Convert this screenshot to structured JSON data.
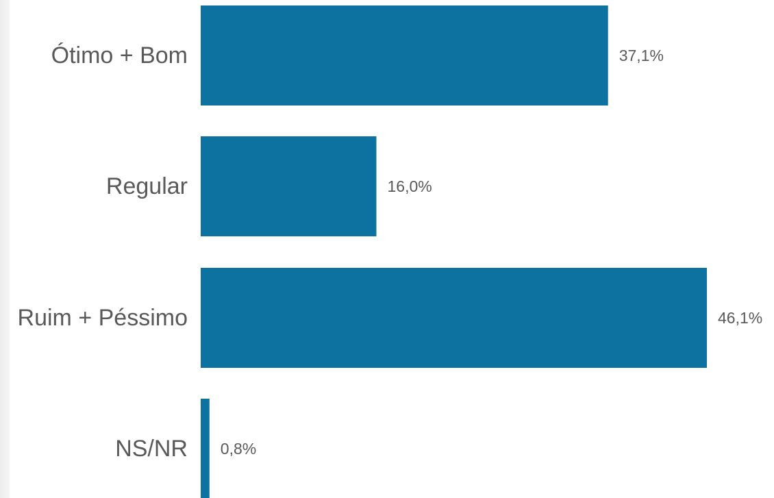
{
  "chart_data": {
    "type": "bar",
    "orientation": "horizontal",
    "categories": [
      "Ótimo + Bom",
      "Regular",
      "Ruim + Péssimo",
      "NS/NR"
    ],
    "values": [
      37.1,
      16.0,
      46.1,
      0.8
    ],
    "value_labels": [
      "37,1%",
      "16,0%",
      "46,1%",
      "0,8%"
    ],
    "unit": "%",
    "xlim": [
      0,
      46.1
    ],
    "grid": false,
    "legend": "none",
    "colors": {
      "bar": "#0d72a0",
      "text": "#595959",
      "background": "#ffffff"
    }
  }
}
